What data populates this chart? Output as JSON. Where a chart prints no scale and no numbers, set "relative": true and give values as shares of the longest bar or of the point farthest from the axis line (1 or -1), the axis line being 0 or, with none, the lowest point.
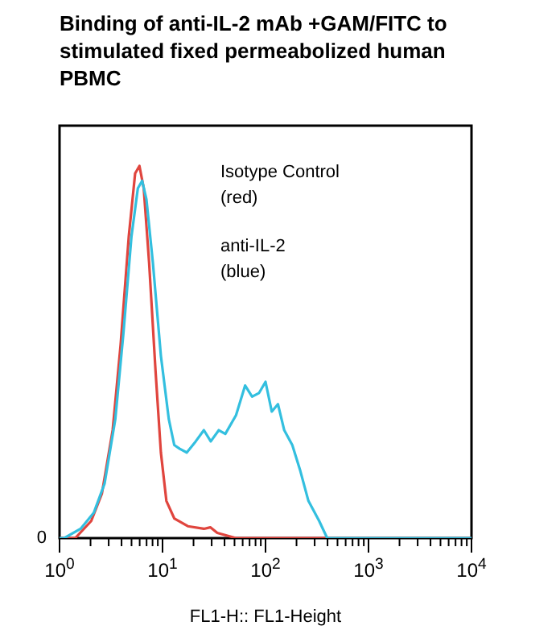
{
  "chart_data": {
    "type": "line",
    "title": "Binding of anti-IL-2 mAb +GAM/FITC to\nstimulated fixed permeabolized human\nPBMC",
    "xlabel": "FL1-H:: FL1-Height",
    "log": "x",
    "relative": true,
    "grid": false,
    "marker": "none",
    "line_style": "solid",
    "xlim": [
      1,
      10000
    ],
    "xticks": [
      {
        "value": 1,
        "label": "10$^{0}$"
      },
      {
        "value": 2,
        "label": null
      },
      {
        "value": 3,
        "label": null
      },
      {
        "value": 4,
        "label": null
      },
      {
        "value": 5,
        "label": null
      },
      {
        "value": 6,
        "label": null
      },
      {
        "value": 7,
        "label": null
      },
      {
        "value": 8,
        "label": null
      },
      {
        "value": 9,
        "label": null
      },
      {
        "value": 10,
        "label": "10$^{1}$"
      },
      {
        "value": 20,
        "label": null
      },
      {
        "value": 30,
        "label": null
      },
      {
        "value": 40,
        "label": null
      },
      {
        "value": 50,
        "label": null
      },
      {
        "value": 60,
        "label": null
      },
      {
        "value": 70,
        "label": null
      },
      {
        "value": 80,
        "label": null
      },
      {
        "value": 90,
        "label": null
      },
      {
        "value": 100,
        "label": "10$^{2}$"
      },
      {
        "value": 200,
        "label": null
      },
      {
        "value": 300,
        "label": null
      },
      {
        "value": 400,
        "label": null
      },
      {
        "value": 500,
        "label": null
      },
      {
        "value": 600,
        "label": null
      },
      {
        "value": 700,
        "label": null
      },
      {
        "value": 800,
        "label": null
      },
      {
        "value": 900,
        "label": null
      },
      {
        "value": 1000,
        "label": "10$^{3}$"
      },
      {
        "value": 2000,
        "label": null
      },
      {
        "value": 3000,
        "label": null
      },
      {
        "value": 4000,
        "label": null
      },
      {
        "value": 5000,
        "label": null
      },
      {
        "value": 6000,
        "label": null
      },
      {
        "value": 7000,
        "label": null
      },
      {
        "value": 8000,
        "label": null
      },
      {
        "value": 9000,
        "label": null
      },
      {
        "value": 10000,
        "label": "10$^{4}$"
      }
    ],
    "annotations": [
      "Isotype Control\n(red)",
      "anti-IL-2\n(blue)",
      "0"
    ],
    "series": [
      {
        "color": "#e0453e",
        "x": [
          1,
          1.42,
          2.03,
          2.58,
          3.28,
          3.92,
          4.7,
          5.42,
          5.97,
          6.57,
          7.41,
          8.55,
          9.64,
          10.9,
          13,
          17.6,
          25.2,
          29.1,
          34,
          51.7,
          10000
        ],
        "values": [
          0,
          0,
          0.046,
          0.12,
          0.29,
          0.52,
          0.81,
          0.98,
          1,
          0.94,
          0.74,
          0.45,
          0.23,
          0.1,
          0.053,
          0.032,
          0.025,
          0.029,
          0.014,
          0,
          0
        ]
      },
      {
        "color": "#33bfdf",
        "x": [
          1,
          1.11,
          1.6,
          2.15,
          2.74,
          3.48,
          4.17,
          4.99,
          5.76,
          6.34,
          6.98,
          8.06,
          9.64,
          11.5,
          13,
          14.7,
          17.2,
          21,
          25.2,
          29.4,
          35.2,
          40.7,
          51.7,
          63.4,
          74.1,
          86.6,
          100,
          115,
          132,
          152,
          182,
          218,
          261,
          332,
          397,
          10000
        ],
        "values": [
          0,
          0,
          0.025,
          0.068,
          0.147,
          0.32,
          0.55,
          0.81,
          0.94,
          0.96,
          0.91,
          0.74,
          0.49,
          0.32,
          0.25,
          0.24,
          0.23,
          0.26,
          0.29,
          0.26,
          0.29,
          0.28,
          0.33,
          0.41,
          0.38,
          0.39,
          0.42,
          0.34,
          0.36,
          0.29,
          0.25,
          0.18,
          0.1,
          0.046,
          0,
          0
        ]
      }
    ]
  }
}
